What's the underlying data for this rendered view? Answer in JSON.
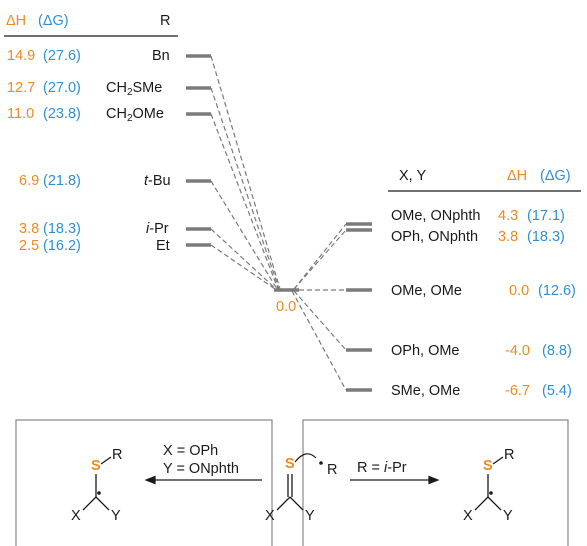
{
  "colors": {
    "enthalpy": "#ef8a1e",
    "free_energy": "#2f8fd6",
    "level": "#7a7a7a",
    "text": "#1a1a1a",
    "sulfur": "#ef8a1e"
  },
  "left_table": {
    "header": {
      "dh": "ΔH",
      "dg": "(ΔG)",
      "r": "R"
    },
    "rows": [
      {
        "dh": "14.9",
        "dg": "(27.6)",
        "r": "Bn"
      },
      {
        "dh": "12.7",
        "dg": "(27.0)",
        "r_main": "CH",
        "r_sub": "2",
        "r_tail": "SMe"
      },
      {
        "dh": "11.0",
        "dg": "(23.8)",
        "r_main": "CH",
        "r_sub": "2",
        "r_tail": "OMe"
      },
      {
        "dh": "6.9",
        "dg": "(21.8)",
        "r_italic": "t",
        "r_tail": "-Bu"
      },
      {
        "dh": "3.8",
        "dg": "(18.3)",
        "r_italic": "i",
        "r_tail": "-Pr"
      },
      {
        "dh": "2.5",
        "dg": "(16.2)",
        "r": "Et"
      }
    ]
  },
  "center": {
    "zero": "0.0"
  },
  "right_table": {
    "header": {
      "xy": "X, Y",
      "dh": "ΔH",
      "dg": "(ΔG)"
    },
    "rows": [
      {
        "xy": "OMe, ONphth",
        "dh": "4.3",
        "dg": "(17.1)"
      },
      {
        "xy": "OPh, ONphth",
        "dh": "3.8",
        "dg": "(18.3)"
      },
      {
        "xy": "OMe, OMe",
        "dh": "0.0",
        "dg": "(12.6)"
      },
      {
        "xy": "OPh, OMe",
        "dh": "-4.0",
        "dg": "(8.8)"
      },
      {
        "xy": "SMe, OMe",
        "dh": "-6.7",
        "dg": "(5.4)"
      }
    ]
  },
  "scheme": {
    "left_conditions": {
      "line1": "X = OPh",
      "line2": "Y = ONphth"
    },
    "right_condition": {
      "prefix": "R = ",
      "italic": "i",
      "suffix": "-Pr"
    },
    "atoms": {
      "S": "S",
      "R": "R",
      "X": "X",
      "Y": "Y"
    }
  }
}
